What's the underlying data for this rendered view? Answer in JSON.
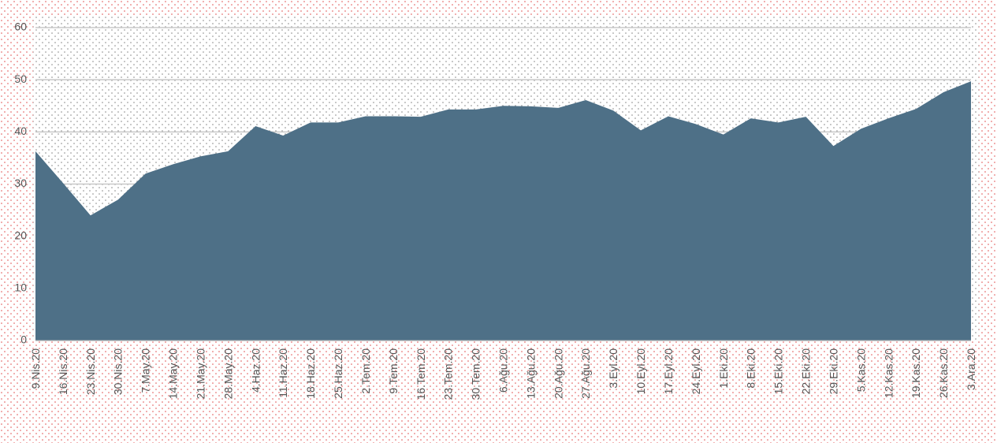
{
  "chart_data": {
    "type": "area",
    "color": "#4e7087",
    "categories": [
      "9.Nis.20",
      "16.Nis.20",
      "23.Nis.20",
      "30.Nis.20",
      "7.May.20",
      "14.May.20",
      "21.May.20",
      "28.May.20",
      "4.Haz.20",
      "11.Haz.20",
      "18.Haz.20",
      "25.Haz.20",
      "2.Tem.20",
      "9.Tem.20",
      "16.Tem.20",
      "23.Tem.20",
      "30.Tem.20",
      "6.Ağu.20",
      "13.Ağu.20",
      "20.Ağu.20",
      "27.Ağu.20",
      "3.Eyl.20",
      "10.Eyl.20",
      "17.Eyl.20",
      "24.Eyl.20",
      "1.Eki.20",
      "8.Eki.20",
      "15.Eki.20",
      "22.Eki.20",
      "29.Eki.20",
      "5.Kas.20",
      "12.Kas.20",
      "19.Kas.20",
      "26.Kas.20",
      "3.Ara.20"
    ],
    "values": [
      36.3,
      30.2,
      24,
      27,
      32,
      33.8,
      35.3,
      36.3,
      41.1,
      39.3,
      41.8,
      41.8,
      43,
      43,
      42.9,
      44.3,
      44.3,
      45,
      44.9,
      44.6,
      46.1,
      44.1,
      40.3,
      43,
      41.5,
      39.5,
      42.6,
      41.8,
      42.9,
      37.3,
      40.6,
      42.6,
      44.4,
      47.6,
      49.7
    ],
    "ylim": [
      0,
      60
    ],
    "yticks": [
      0,
      10,
      20,
      30,
      40,
      50,
      60
    ],
    "grid": true
  }
}
